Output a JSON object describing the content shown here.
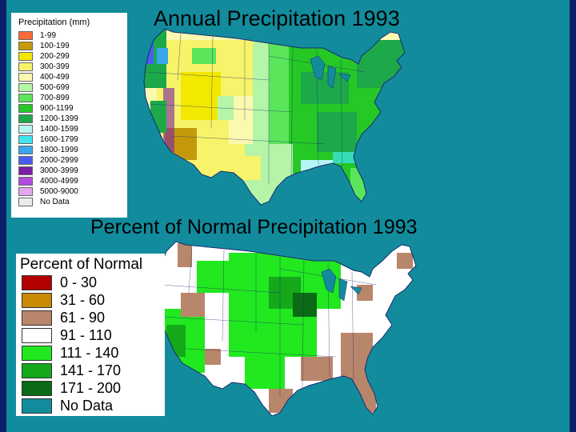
{
  "titles": {
    "annual": "Annual Precipitation 1993",
    "percent": "Percent of Normal Precipitation 1993"
  },
  "legend_annual": {
    "heading": "Precipitation (mm)",
    "items": [
      {
        "label": "1-99",
        "color": "#ff6a3a"
      },
      {
        "label": "100-199",
        "color": "#c49a0c"
      },
      {
        "label": "200-299",
        "color": "#f2e800"
      },
      {
        "label": "300-399",
        "color": "#f7f36a"
      },
      {
        "label": "400-499",
        "color": "#fbf9b0"
      },
      {
        "label": "500-699",
        "color": "#b5f5a8"
      },
      {
        "label": "700-899",
        "color": "#5be55b"
      },
      {
        "label": "900-1199",
        "color": "#25c825"
      },
      {
        "label": "1200-1399",
        "color": "#1da84a"
      },
      {
        "label": "1400-1599",
        "color": "#b8f5f5"
      },
      {
        "label": "1600-1799",
        "color": "#3fe6f2"
      },
      {
        "label": "1800-1999",
        "color": "#3aa6ee"
      },
      {
        "label": "2000-2999",
        "color": "#4b5df0"
      },
      {
        "label": "3000-3999",
        "color": "#7a1fa6"
      },
      {
        "label": "4000-4999",
        "color": "#b04be0"
      },
      {
        "label": "5000-9000",
        "color": "#e1a8ef"
      },
      {
        "label": "No Data",
        "color": "#ececec"
      }
    ]
  },
  "legend_percent": {
    "heading": "Percent of Normal",
    "items": [
      {
        "label": "0 - 30",
        "color": "#b30000"
      },
      {
        "label": "31 - 60",
        "color": "#c88a00"
      },
      {
        "label": "61 - 90",
        "color": "#b8866a"
      },
      {
        "label": "91 - 110",
        "color": "#ffffff"
      },
      {
        "label": "111 - 140",
        "color": "#22e81f"
      },
      {
        "label": "141 - 170",
        "color": "#14a81a"
      },
      {
        "label": "171 - 200",
        "color": "#0a6a16"
      },
      {
        "label": "No Data",
        "color": "#128c9c"
      }
    ]
  }
}
